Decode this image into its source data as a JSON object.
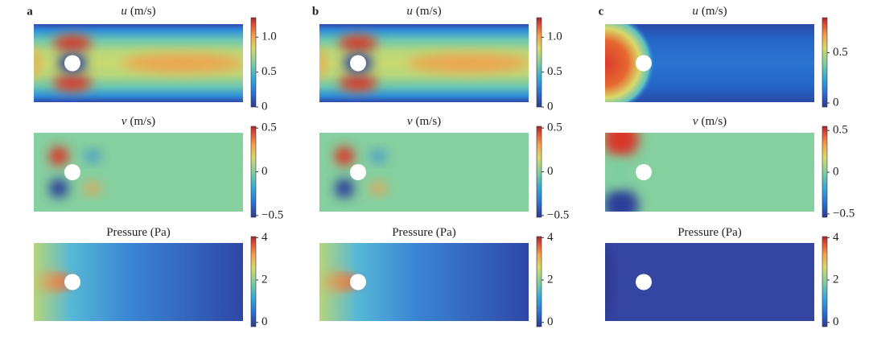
{
  "panels": [
    {
      "label": "a",
      "plots": [
        {
          "title": {
            "symbol": "u",
            "text": "(m/s)"
          },
          "colorbar": {
            "range": [
              0,
              1.28
            ],
            "ticks": [
              0,
              0.5,
              {
                "value": 1,
                "label": "1.0"
              }
            ]
          }
        },
        {
          "title": {
            "symbol": "v",
            "text": "(m/s)"
          },
          "colorbar": {
            "range": [
              -0.52,
              0.52
            ],
            "ticks": [
              {
                "value": -0.5,
                "label": "−0.5"
              },
              0,
              0.5
            ]
          }
        },
        {
          "title": {
            "text": "Pressure (Pa)"
          },
          "colorbar": {
            "range": [
              -0.2,
              4.05
            ],
            "ticks": [
              0,
              2,
              4
            ]
          }
        }
      ]
    },
    {
      "label": "b",
      "plots": [
        {
          "title": {
            "symbol": "u",
            "text": "(m/s)"
          },
          "colorbar": {
            "range": [
              0,
              1.28
            ],
            "ticks": [
              0,
              0.5,
              {
                "value": 1,
                "label": "1.0"
              }
            ]
          }
        },
        {
          "title": {
            "symbol": "v",
            "text": "(m/s)"
          },
          "colorbar": {
            "range": [
              -0.52,
              0.52
            ],
            "ticks": [
              {
                "value": -0.5,
                "label": "−0.5"
              },
              0,
              0.5
            ]
          }
        },
        {
          "title": {
            "text": "Pressure (Pa)"
          },
          "colorbar": {
            "range": [
              -0.2,
              4.05
            ],
            "ticks": [
              0,
              2,
              4
            ]
          }
        }
      ]
    },
    {
      "label": "c",
      "plots": [
        {
          "title": {
            "symbol": "u",
            "text": "(m/s)"
          },
          "colorbar": {
            "range": [
              -0.04,
              0.85
            ],
            "ticks": [
              0,
              0.5
            ]
          }
        },
        {
          "title": {
            "symbol": "v",
            "text": "(m/s)"
          },
          "colorbar": {
            "range": [
              -0.54,
              0.55
            ],
            "ticks": [
              {
                "value": -0.5,
                "label": "−0.5"
              },
              0,
              0.5
            ]
          }
        },
        {
          "title": {
            "text": "Pressure (Pa)"
          },
          "colorbar": {
            "range": [
              -0.2,
              4.05
            ],
            "ticks": [
              0,
              2,
              4
            ]
          }
        }
      ]
    }
  ]
}
